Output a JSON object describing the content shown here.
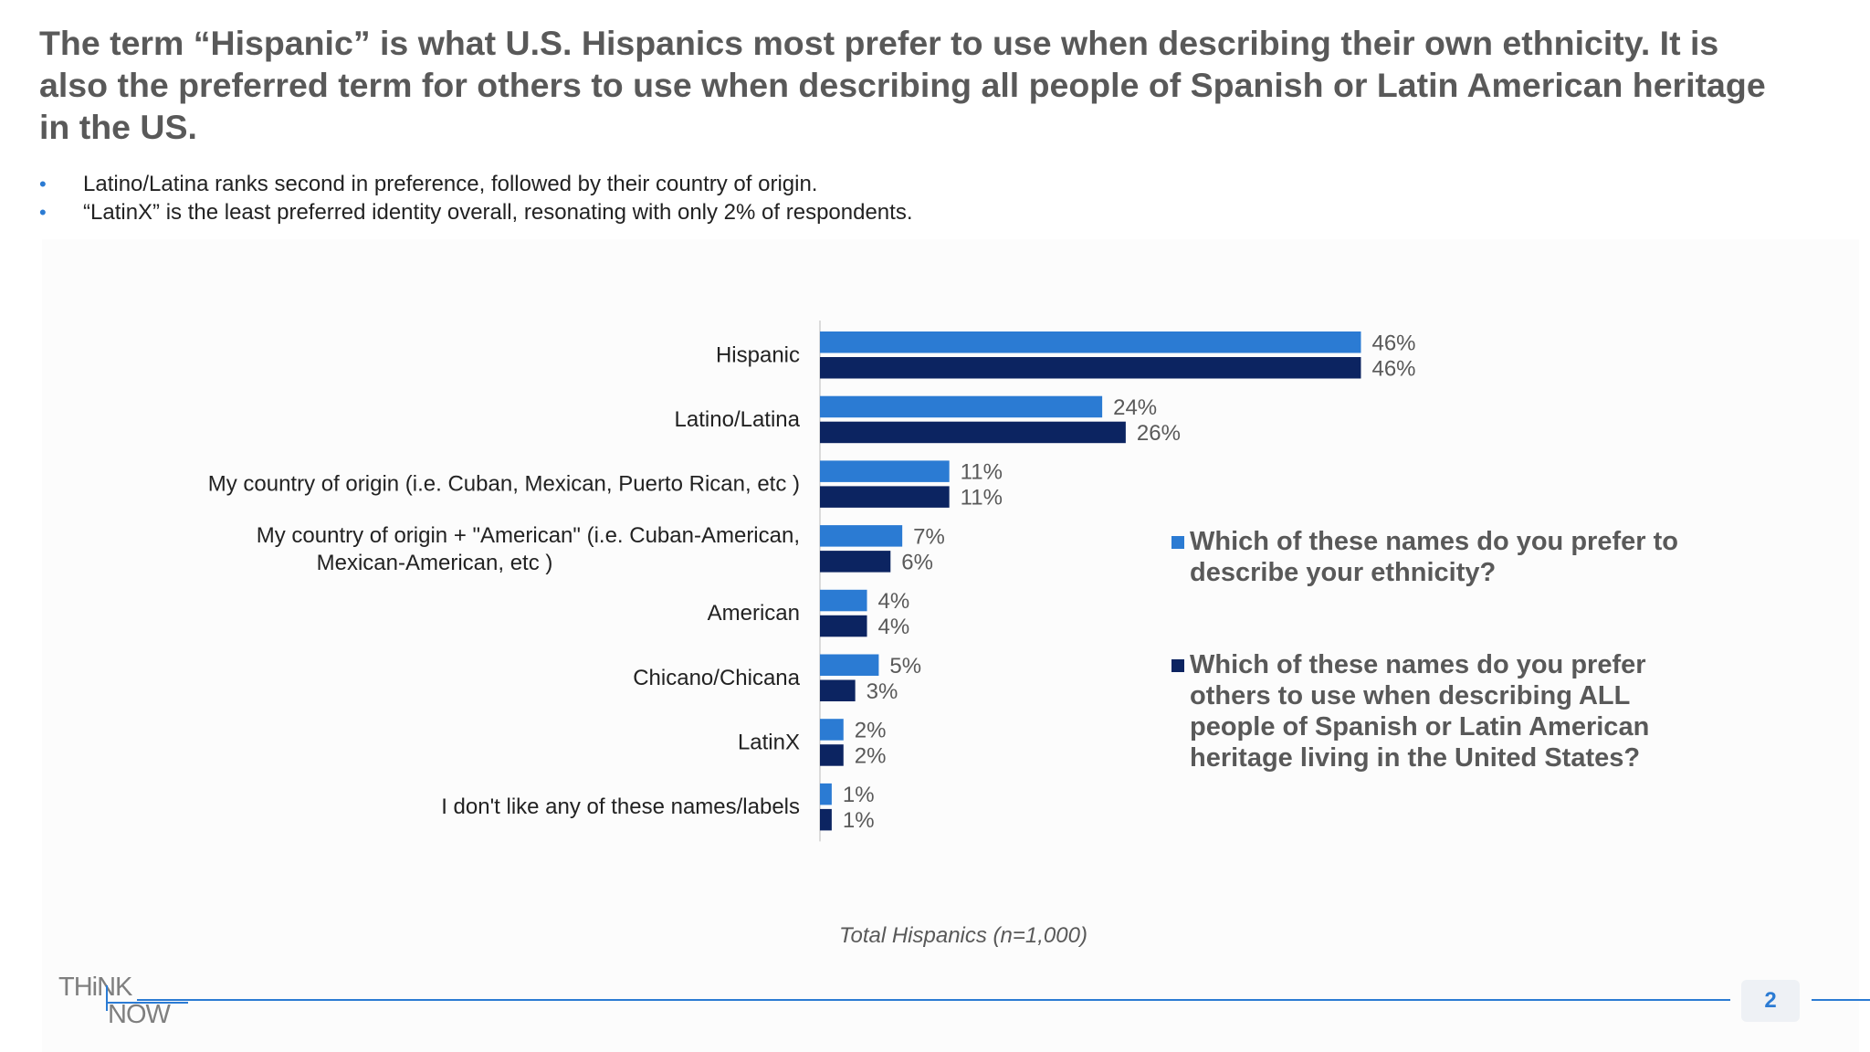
{
  "title": "The term “Hispanic” is what U.S. Hispanics most prefer to use when describing their own ethnicity. It is also the preferred term for others to use when describing all people of Spanish or Latin American heritage in the US.",
  "bullets": [
    "Latino/Latina ranks second in preference, followed by their country of origin.",
    "“LatinX” is the least preferred identity overall, resonating with only 2% of respondents."
  ],
  "bullet_glyph": "•",
  "chart_data": {
    "type": "bar",
    "orientation": "horizontal",
    "categories": [
      "Hispanic",
      "Latino/Latina",
      "My country of origin (i.e. Cuban, Mexican, Puerto Rican, etc )",
      "My country of origin + \"American\" (i.e. Cuban-American, Mexican-American, etc )",
      "American",
      "Chicano/Chicana",
      "LatinX",
      "I don't like any of these names/labels"
    ],
    "series": [
      {
        "name": "Which of these names do you prefer to describe your ethnicity?",
        "color": "#2B7BD3",
        "values": [
          46,
          24,
          11,
          7,
          4,
          5,
          2,
          1
        ],
        "labels": [
          "46%",
          "24%",
          "11%",
          "7%",
          "4%",
          "5%",
          "2%",
          "1%"
        ]
      },
      {
        "name": "Which of these names do you prefer others to use when describing ALL people of Spanish or Latin American heritage living in the United States?",
        "color": "#0C2461",
        "values": [
          46,
          26,
          11,
          6,
          4,
          3,
          2,
          1
        ],
        "labels": [
          "46%",
          "26%",
          "11%",
          "6%",
          "4%",
          "3%",
          "2%",
          "1%"
        ]
      }
    ],
    "xlim": [
      0,
      100
    ],
    "grid": false,
    "legend": "right"
  },
  "caption": "Total Hispanics (n=1,000)",
  "logo": {
    "line1": "THiNK",
    "line2": "NOW"
  },
  "page_number": "2"
}
